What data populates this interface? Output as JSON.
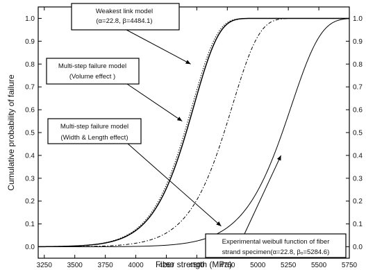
{
  "chart_data": {
    "type": "line",
    "title": "",
    "xlabel": "Fiber strength (MPa)",
    "ylabel": "Cumulative probability of failure",
    "xlim": [
      3200,
      5750
    ],
    "ylim": [
      -0.05,
      1.05
    ],
    "xticks": [
      3250,
      3500,
      3750,
      4000,
      4250,
      4500,
      4750,
      5000,
      5250,
      5500,
      5750
    ],
    "yticks": [
      0.0,
      0.1,
      0.2,
      0.3,
      0.4,
      0.5,
      0.6,
      0.7,
      0.8,
      0.9,
      1.0
    ],
    "right_axis": true,
    "grid": false,
    "series": [
      {
        "style": "solid",
        "weibull": {
          "alpha": 22.8,
          "beta": 4484.1
        }
      },
      {
        "style": "dotted",
        "weibull": {
          "alpha": 22.8,
          "beta": 4470
        }
      },
      {
        "style": "dash-dot",
        "weibull": {
          "alpha": 22.8,
          "beta": 4800
        }
      },
      {
        "style": "solid",
        "weibull": {
          "alpha": 22.8,
          "beta": 5284.6
        }
      }
    ],
    "annotations": [
      {
        "lines": [
          "Weakest link model",
          "(α=22.8, β=4484.1)"
        ],
        "arrow_to": [
          4450,
          0.8
        ]
      },
      {
        "lines": [
          "Multi-step failure model",
          "(Volume effect )"
        ],
        "arrow_to": [
          4380,
          0.55
        ]
      },
      {
        "lines": [
          "Multi-step failure model",
          "(Width & Length effect)"
        ],
        "arrow_to": [
          4700,
          0.09
        ]
      },
      {
        "lines": [
          "Experimental weibull function of fiber",
          "strand specimen(α=22.8, βₒ=5284.6)"
        ],
        "arrow_to": [
          5190,
          0.4
        ]
      }
    ]
  }
}
